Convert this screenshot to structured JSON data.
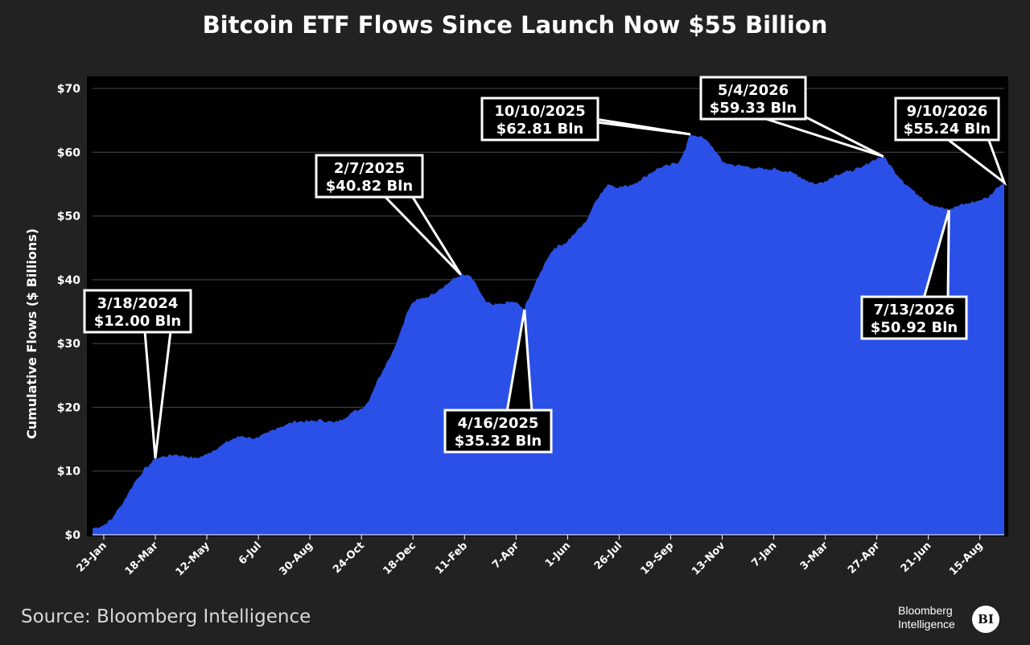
{
  "chart_data": {
    "type": "area",
    "title": "Bitcoin ETF Flows Since Launch Now $55 Billion",
    "xlabel": "",
    "ylabel": "Cumulative Flows ($ Billions)",
    "ylim": [
      0,
      70
    ],
    "y_ticks": [
      0,
      10,
      20,
      30,
      40,
      50,
      60,
      70
    ],
    "y_tick_labels": [
      "$0",
      "$10",
      "$20",
      "$30",
      "$40",
      "$50",
      "$60",
      "$70"
    ],
    "x_ticks": [
      "2024-01-23",
      "2024-03-18",
      "2024-05-12",
      "2024-07-06",
      "2024-08-30",
      "2024-10-24",
      "2024-12-18",
      "2025-02-11",
      "2025-04-07",
      "2025-06-01",
      "2025-07-26",
      "2025-09-19",
      "2025-11-13",
      "2026-01-07",
      "2026-03-03",
      "2026-04-27",
      "2026-06-21",
      "2026-08-15"
    ],
    "x_tick_labels": [
      "23-Jan",
      "18-Mar",
      "12-May",
      "6-Jul",
      "30-Aug",
      "24-Oct",
      "18-Dec",
      "11-Feb",
      "7-Apr",
      "1-Jun",
      "26-Jul",
      "19-Sep",
      "13-Nov",
      "7-Jan",
      "3-Mar",
      "27-Apr",
      "21-Jun",
      "15-Aug"
    ],
    "xlim": [
      "2024-01-11",
      "2026-09-10"
    ],
    "grid": "horizontal",
    "series": [
      {
        "color": "#2b50e8",
        "x": [
          "2024-01-11",
          "2024-01-23",
          "2024-02-01",
          "2024-02-10",
          "2024-02-18",
          "2024-02-26",
          "2024-03-05",
          "2024-03-12",
          "2024-03-18",
          "2024-03-28",
          "2024-04-08",
          "2024-04-20",
          "2024-05-01",
          "2024-05-12",
          "2024-05-25",
          "2024-06-08",
          "2024-06-18",
          "2024-06-28",
          "2024-07-06",
          "2024-07-16",
          "2024-07-26",
          "2024-08-05",
          "2024-08-15",
          "2024-08-30",
          "2024-09-12",
          "2024-09-25",
          "2024-10-05",
          "2024-10-14",
          "2024-10-24",
          "2024-11-01",
          "2024-11-08",
          "2024-11-15",
          "2024-11-22",
          "2024-11-30",
          "2024-12-06",
          "2024-12-12",
          "2024-12-18",
          "2024-12-26",
          "2025-01-05",
          "2025-01-15",
          "2025-01-25",
          "2025-02-07",
          "2025-02-18",
          "2025-02-26",
          "2025-03-06",
          "2025-03-14",
          "2025-03-22",
          "2025-03-30",
          "2025-04-07",
          "2025-04-16",
          "2025-04-23",
          "2025-05-01",
          "2025-05-09",
          "2025-05-18",
          "2025-06-01",
          "2025-06-10",
          "2025-06-20",
          "2025-06-28",
          "2025-07-06",
          "2025-07-14",
          "2025-07-26",
          "2025-08-06",
          "2025-08-16",
          "2025-08-26",
          "2025-09-06",
          "2025-09-19",
          "2025-09-28",
          "2025-10-05",
          "2025-10-10",
          "2025-10-20",
          "2025-10-30",
          "2025-11-07",
          "2025-11-13",
          "2025-11-25",
          "2025-12-08",
          "2025-12-20",
          "2026-01-01",
          "2026-01-07",
          "2026-01-20",
          "2026-02-01",
          "2026-02-12",
          "2026-02-22",
          "2026-03-03",
          "2026-03-15",
          "2026-03-28",
          "2026-04-10",
          "2026-04-20",
          "2026-04-27",
          "2026-05-04",
          "2026-05-14",
          "2026-05-25",
          "2026-06-05",
          "2026-06-14",
          "2026-06-21",
          "2026-07-01",
          "2026-07-13",
          "2026-07-25",
          "2026-08-04",
          "2026-08-15",
          "2026-08-25",
          "2026-09-03",
          "2026-09-10"
        ],
        "values": [
          1.0,
          1.5,
          2.5,
          4.5,
          6.5,
          8.5,
          10.0,
          11.0,
          12.0,
          12.3,
          12.6,
          12.3,
          12.0,
          12.6,
          13.8,
          15.0,
          15.5,
          15.2,
          15.2,
          16.0,
          16.8,
          17.3,
          17.8,
          17.8,
          18.0,
          17.6,
          18.2,
          19.2,
          19.8,
          21.0,
          23.5,
          25.5,
          27.5,
          30.0,
          32.5,
          35.0,
          36.5,
          37.0,
          37.5,
          38.5,
          39.5,
          40.82,
          40.5,
          38.5,
          36.5,
          36.0,
          36.2,
          36.5,
          36.5,
          35.32,
          38.0,
          40.5,
          43.0,
          45.0,
          46.0,
          47.5,
          49.0,
          51.5,
          53.5,
          55.0,
          54.5,
          54.8,
          55.5,
          56.5,
          57.5,
          58.0,
          58.5,
          60.5,
          62.81,
          62.5,
          61.5,
          60.0,
          58.5,
          58.0,
          57.8,
          57.5,
          57.2,
          57.5,
          57.0,
          56.5,
          55.5,
          55.0,
          55.5,
          56.5,
          57.0,
          57.5,
          58.5,
          59.0,
          59.33,
          57.5,
          55.5,
          54.0,
          53.0,
          52.0,
          51.5,
          50.92,
          51.8,
          52.0,
          52.5,
          53.0,
          54.5,
          55.24
        ]
      }
    ],
    "annotations": [
      {
        "x": "2024-03-18",
        "y": 12.0,
        "date": "3/18/2024",
        "value": "$12.00 Bln"
      },
      {
        "x": "2025-02-07",
        "y": 40.82,
        "date": "2/7/2025",
        "value": "$40.82 Bln"
      },
      {
        "x": "2025-04-16",
        "y": 35.32,
        "date": "4/16/2025",
        "value": "$35.32 Bln"
      },
      {
        "x": "2025-10-10",
        "y": 62.81,
        "date": "10/10/2025",
        "value": "$62.81 Bln"
      },
      {
        "x": "2026-05-04",
        "y": 59.33,
        "date": "5/4/2026",
        "value": "$59.33 Bln"
      },
      {
        "x": "2026-07-13",
        "y": 50.92,
        "date": "7/13/2026",
        "value": "$50.92 Bln"
      },
      {
        "x": "2026-09-10",
        "y": 55.24,
        "date": "9/10/2026",
        "value": "$55.24 Bln"
      }
    ]
  },
  "footer": {
    "source": "Source: Bloomberg Intelligence",
    "logo_line1": "Bloomberg",
    "logo_line2": "Intelligence",
    "logo_badge": "BI"
  }
}
